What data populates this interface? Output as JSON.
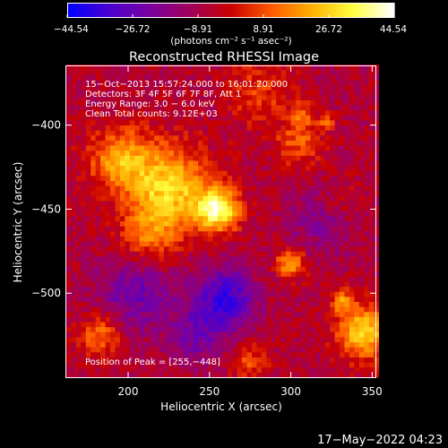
{
  "chart_data": {
    "type": "heatmap",
    "title": "Reconstructed RHESSI Image",
    "xlabel": "Heliocentric X (arcsec)",
    "ylabel": "Heliocentric Y (arcsec)",
    "xlim": [
      162,
      352
    ],
    "ylim": [
      -550,
      -365
    ],
    "x_ticks": [
      {
        "value": 200,
        "label": "200"
      },
      {
        "value": 250,
        "label": "250"
      },
      {
        "value": 300,
        "label": "300"
      },
      {
        "value": 350,
        "label": "350"
      }
    ],
    "y_ticks": [
      {
        "value": -400,
        "label": "−400"
      },
      {
        "value": -450,
        "label": "−450"
      },
      {
        "value": -500,
        "label": "−500"
      }
    ],
    "colorbar": {
      "min": -44.54,
      "max": 44.54,
      "tick_values": [
        -44.54,
        -26.72,
        -8.91,
        8.91,
        26.72,
        44.54
      ],
      "tick_labels": [
        "−44.54",
        "−26.72",
        "−8.91",
        "8.91",
        "26.72",
        "44.54"
      ],
      "unit_label": "(photons cm⁻² s⁻¹ asec⁻²)",
      "colormap": [
        "#0000ff",
        "#4a00d0",
        "#7a00a0",
        "#a0005a",
        "#c80000",
        "#ff5a00",
        "#ffb000",
        "#ffff40",
        "#ffffff"
      ]
    },
    "annotations": [
      "15−Oct−2013 15:57:24.000 to 16:01:20.000",
      "Detectors: 3F 4F 5F 6F 7F 8F, Att 1",
      "Energy Range: 3.0 − 6.0 keV",
      "Clean    Total counts: 9.12E+03"
    ],
    "peak_label": "Position of Peak = [255,−448]",
    "peak": {
      "x": 255,
      "y": -448,
      "value": 44.54
    },
    "sources": [
      {
        "x": 255,
        "y": -450,
        "peak": 44.5,
        "sigma": 9
      },
      {
        "x": 225,
        "y": -437,
        "peak": 34,
        "sigma": 17
      },
      {
        "x": 195,
        "y": -420,
        "peak": 26,
        "sigma": 13
      },
      {
        "x": 213,
        "y": -465,
        "peak": 18,
        "sigma": 12
      },
      {
        "x": 305,
        "y": -410,
        "peak": 16,
        "sigma": 10
      },
      {
        "x": 307,
        "y": -393,
        "peak": 14,
        "sigma": 5
      },
      {
        "x": 322,
        "y": -398,
        "peak": 22,
        "sigma": 3
      },
      {
        "x": 300,
        "y": -482,
        "peak": 28,
        "sigma": 6
      },
      {
        "x": 345,
        "y": -523,
        "peak": 34,
        "sigma": 11
      },
      {
        "x": 332,
        "y": -505,
        "peak": 22,
        "sigma": 5
      },
      {
        "x": 183,
        "y": -525,
        "peak": 20,
        "sigma": 9
      },
      {
        "x": 280,
        "y": -380,
        "peak": 12,
        "sigma": 14
      },
      {
        "x": 275,
        "y": -540,
        "peak": 14,
        "sigma": 8
      },
      {
        "x": 330,
        "y": -445,
        "peak": 10,
        "sigma": 10
      }
    ],
    "holes": [
      {
        "x": 260,
        "y": -503,
        "depth": -30,
        "sigma": 13
      },
      {
        "x": 205,
        "y": -500,
        "depth": -18,
        "sigma": 16
      },
      {
        "x": 320,
        "y": -455,
        "depth": -14,
        "sigma": 14
      },
      {
        "x": 242,
        "y": -525,
        "depth": -16,
        "sigma": 12
      }
    ],
    "background_level": -6,
    "grid": false
  },
  "footer": {
    "timestamp": "17−May−2022 04:23"
  }
}
